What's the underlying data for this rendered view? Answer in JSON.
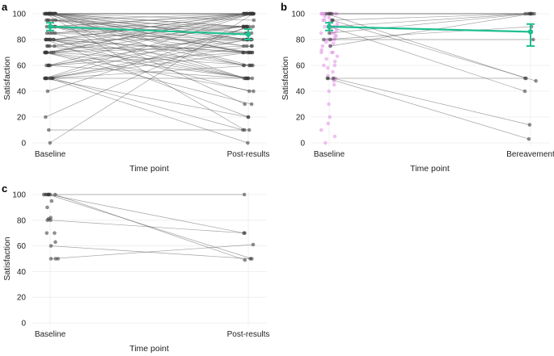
{
  "chart_data": [
    {
      "panel": "a",
      "type": "scatter",
      "subtype": "paired-slopegraph",
      "xlabel": "Time point",
      "ylabel": "Satisfaction",
      "categories": [
        "Baseline",
        "Post-results"
      ],
      "ylim": [
        0,
        100
      ],
      "yticks": [
        0,
        20,
        40,
        60,
        80,
        100
      ],
      "grid": true,
      "point_color": "#333333",
      "line_color": "#555555",
      "summary_color": "#1fbf8f",
      "pairs": [
        [
          100,
          100
        ],
        [
          100,
          100
        ],
        [
          100,
          100
        ],
        [
          100,
          100
        ],
        [
          100,
          100
        ],
        [
          100,
          100
        ],
        [
          100,
          100
        ],
        [
          100,
          100
        ],
        [
          100,
          100
        ],
        [
          100,
          100
        ],
        [
          100,
          100
        ],
        [
          100,
          100
        ],
        [
          100,
          100
        ],
        [
          100,
          90
        ],
        [
          100,
          90
        ],
        [
          100,
          80
        ],
        [
          100,
          80
        ],
        [
          100,
          70
        ],
        [
          100,
          70
        ],
        [
          100,
          50
        ],
        [
          100,
          60
        ],
        [
          100,
          85
        ],
        [
          100,
          30
        ],
        [
          100,
          10
        ],
        [
          100,
          75
        ],
        [
          100,
          95
        ],
        [
          100,
          60
        ],
        [
          95,
          100
        ],
        [
          95,
          90
        ],
        [
          95,
          80
        ],
        [
          95,
          70
        ],
        [
          95,
          85
        ],
        [
          90,
          100
        ],
        [
          90,
          90
        ],
        [
          90,
          80
        ],
        [
          90,
          100
        ],
        [
          90,
          60
        ],
        [
          90,
          70
        ],
        [
          90,
          50
        ],
        [
          90,
          75
        ],
        [
          85,
          100
        ],
        [
          85,
          80
        ],
        [
          85,
          90
        ],
        [
          85,
          50
        ],
        [
          80,
          100
        ],
        [
          80,
          80
        ],
        [
          80,
          90
        ],
        [
          80,
          70
        ],
        [
          80,
          60
        ],
        [
          80,
          50
        ],
        [
          80,
          20
        ],
        [
          80,
          100
        ],
        [
          80,
          40
        ],
        [
          80,
          70
        ],
        [
          75,
          100
        ],
        [
          75,
          90
        ],
        [
          75,
          70
        ],
        [
          75,
          50
        ],
        [
          70,
          100
        ],
        [
          70,
          80
        ],
        [
          70,
          90
        ],
        [
          70,
          60
        ],
        [
          70,
          40
        ],
        [
          70,
          50
        ],
        [
          70,
          30
        ],
        [
          70,
          100
        ],
        [
          70,
          75
        ],
        [
          60,
          100
        ],
        [
          60,
          80
        ],
        [
          60,
          70
        ],
        [
          60,
          85
        ],
        [
          60,
          50
        ],
        [
          50,
          100
        ],
        [
          50,
          90
        ],
        [
          50,
          80
        ],
        [
          50,
          70
        ],
        [
          50,
          60
        ],
        [
          50,
          50
        ],
        [
          50,
          20
        ],
        [
          50,
          10
        ],
        [
          50,
          0
        ],
        [
          50,
          75
        ],
        [
          40,
          90
        ],
        [
          20,
          90
        ],
        [
          10,
          10
        ],
        [
          0,
          100
        ]
      ],
      "summary": {
        "baseline": {
          "mean": 90,
          "ci": [
            87,
            93
          ]
        },
        "post": {
          "mean": 84,
          "ci": [
            80,
            88
          ]
        }
      }
    },
    {
      "panel": "b",
      "type": "scatter",
      "subtype": "paired-slopegraph",
      "xlabel": "Time point",
      "ylabel": "Satisfaction",
      "categories": [
        "Baseline",
        "Bereavement"
      ],
      "ylim": [
        0,
        100
      ],
      "yticks": [
        0,
        20,
        40,
        60,
        80,
        100
      ],
      "grid": true,
      "point_color": "#333333",
      "unpaired_color": "#e08fe6",
      "line_color": "#555555",
      "summary_color": "#1fbf8f",
      "pairs": [
        [
          100,
          100
        ],
        [
          100,
          100
        ],
        [
          100,
          100
        ],
        [
          100,
          50
        ],
        [
          95,
          100
        ],
        [
          95,
          48
        ],
        [
          90,
          100
        ],
        [
          90,
          40
        ],
        [
          85,
          100
        ],
        [
          80,
          90
        ],
        [
          80,
          80
        ],
        [
          75,
          100
        ],
        [
          50,
          50
        ],
        [
          50,
          14
        ],
        [
          50,
          3
        ]
      ],
      "baseline_only": [
        100,
        100,
        100,
        100,
        100,
        100,
        100,
        100,
        100,
        100,
        98,
        97,
        95,
        95,
        95,
        93,
        92,
        90,
        90,
        90,
        90,
        88,
        87,
        85,
        85,
        85,
        83,
        82,
        80,
        80,
        80,
        80,
        78,
        77,
        75,
        75,
        72,
        70,
        70,
        70,
        67,
        65,
        63,
        60,
        60,
        58,
        55,
        52,
        50,
        50,
        50,
        48,
        45,
        40,
        30,
        20,
        15,
        10,
        5,
        0
      ],
      "summary": {
        "baseline": {
          "mean": 90,
          "ci": [
            87,
            93
          ]
        },
        "post": {
          "mean": 86,
          "ci": [
            75,
            92
          ]
        }
      }
    },
    {
      "panel": "c",
      "type": "scatter",
      "subtype": "paired-slopegraph",
      "xlabel": "Time point",
      "ylabel": "Satisfaction",
      "categories": [
        "Baseline",
        "Post-results"
      ],
      "ylim": [
        0,
        100
      ],
      "yticks": [
        0,
        20,
        40,
        60,
        80,
        100
      ],
      "grid": true,
      "point_color": "#333333",
      "unpaired_color": "#333333",
      "line_color": "#555555",
      "pairs": [
        [
          100,
          100
        ],
        [
          100,
          70
        ],
        [
          100,
          50
        ],
        [
          100,
          49
        ],
        [
          80,
          70
        ],
        [
          60,
          50
        ],
        [
          50,
          61
        ]
      ],
      "baseline_only": [
        100,
        100,
        100,
        100,
        95,
        90,
        82,
        81,
        80,
        70,
        70,
        63,
        50,
        50
      ]
    }
  ]
}
